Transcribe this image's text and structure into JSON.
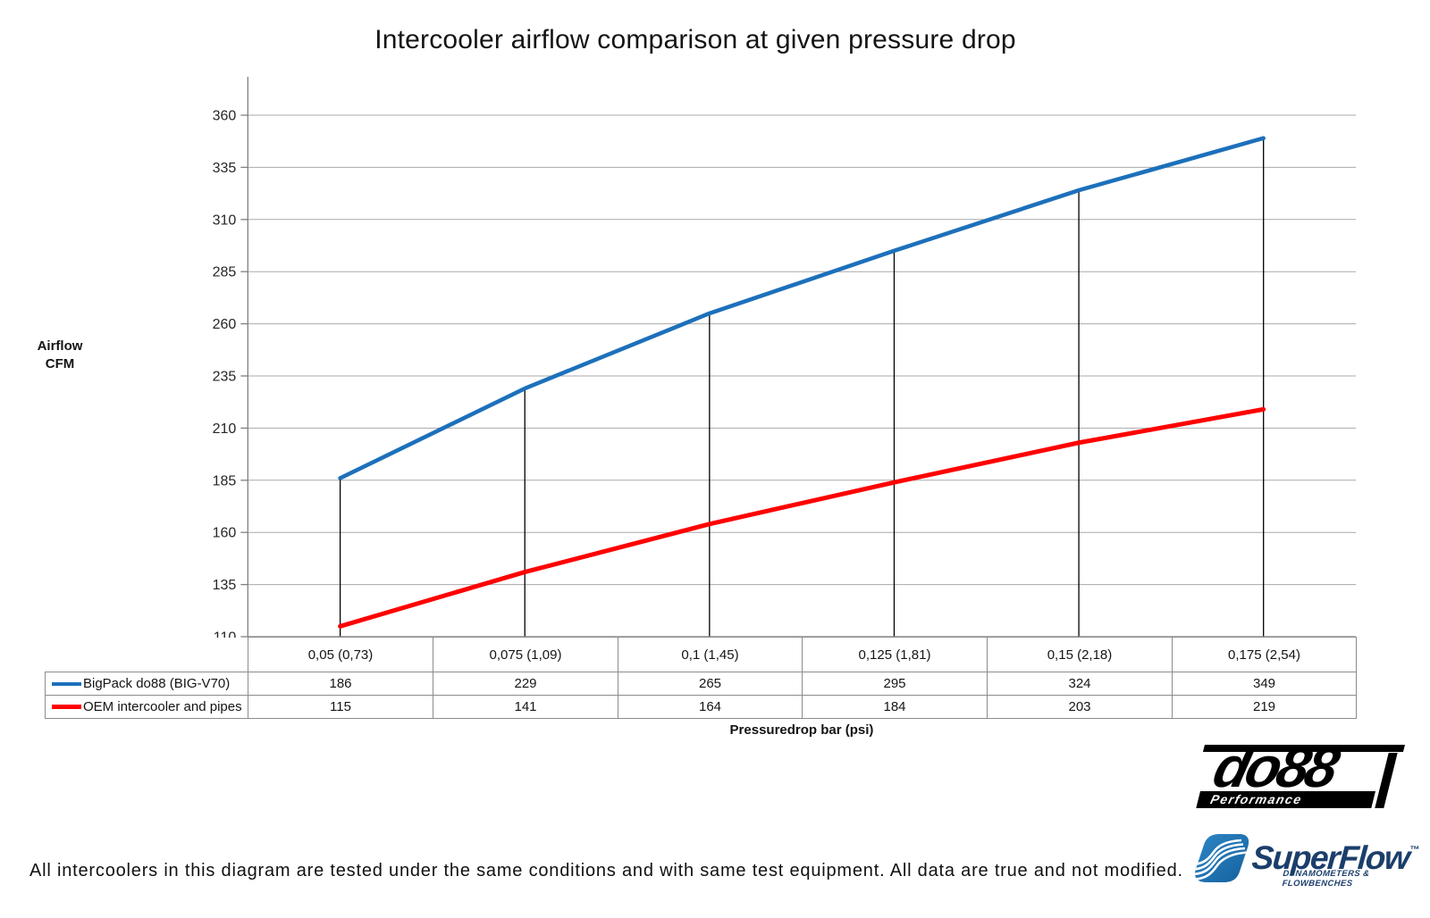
{
  "chart_data": {
    "type": "line",
    "title": "Intercooler airflow comparison at given pressure drop",
    "xlabel": "Pressuredrop bar (psi)",
    "ylabel": "Airflow CFM",
    "ylabel_lines": [
      "Airflow",
      "CFM"
    ],
    "categories": [
      "0,05 (0,73)",
      "0,075 (1,09)",
      "0,1 (1,45)",
      "0,125 (1,81)",
      "0,15 (2,18)",
      "0,175 (2,54)"
    ],
    "series": [
      {
        "name": "BigPack do88 (BIG-V70)",
        "color": "#1D70BB",
        "values": [
          186,
          229,
          265,
          295,
          324,
          349
        ]
      },
      {
        "name": "OEM intercooler and pipes",
        "color": "#FE0000",
        "values": [
          115,
          141,
          164,
          184,
          203,
          219
        ]
      }
    ],
    "ylim": [
      110,
      360
    ],
    "y_ticks": [
      110,
      135,
      160,
      185,
      210,
      235,
      260,
      285,
      310,
      335,
      360
    ],
    "grid": true,
    "drop_lines": true,
    "legend_position": "table-left",
    "colors": {
      "gridline": "#A9A9A9",
      "axis": "#808080",
      "drop_line": "#000000",
      "table_border": "#8C8C8C"
    }
  },
  "page": {
    "footer_note": "All intercoolers in this diagram are tested under the same conditions and with same test equipment. All data are true and not modified."
  },
  "logos": {
    "do88": {
      "name": "do88",
      "tagline": "Performance",
      "ink": "#000000"
    },
    "superflow": {
      "name": "SuperFlow",
      "trademark": "™",
      "tagline": "DYNAMOMETERS & FLOWBENCHES",
      "navy": "#1B3E6B",
      "blue_light": "#2E86C6",
      "blue_dark": "#14619E"
    }
  }
}
